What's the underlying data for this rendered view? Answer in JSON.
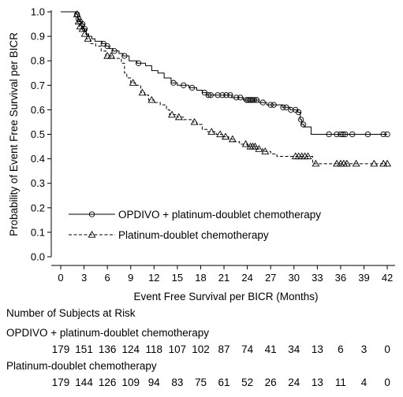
{
  "chart_data": {
    "type": "line",
    "xlabel": "Event Free Survival per BICR (Months)",
    "ylabel": "Probability of Event Free Survival per BICR",
    "xlim": [
      0,
      42.5
    ],
    "ylim": [
      0,
      1.0
    ],
    "x_ticks": [
      0,
      3,
      6,
      9,
      12,
      15,
      18,
      21,
      24,
      27,
      30,
      33,
      36,
      39,
      42
    ],
    "y_ticks": [
      "0.0",
      "0.1",
      "0.2",
      "0.3",
      "0.4",
      "0.5",
      "0.6",
      "0.7",
      "0.8",
      "0.9",
      "1.0"
    ],
    "grid": false,
    "legend_position": "bottom-left",
    "series": [
      {
        "name": "OPDIVO + platinum-doublet chemotherapy",
        "line_style": "solid",
        "marker": "circle",
        "points": [
          [
            0,
            1.0
          ],
          [
            2.0,
            0.99
          ],
          [
            2.2,
            0.97
          ],
          [
            2.4,
            0.96
          ],
          [
            2.7,
            0.95
          ],
          [
            3.0,
            0.93
          ],
          [
            3.3,
            0.91
          ],
          [
            3.6,
            0.9
          ],
          [
            4.0,
            0.89
          ],
          [
            4.4,
            0.88
          ],
          [
            5.3,
            0.87
          ],
          [
            5.8,
            0.86
          ],
          [
            6.2,
            0.85
          ],
          [
            6.7,
            0.84
          ],
          [
            7.5,
            0.83
          ],
          [
            8.0,
            0.82
          ],
          [
            8.8,
            0.8
          ],
          [
            9.8,
            0.79
          ],
          [
            10.9,
            0.78
          ],
          [
            11.7,
            0.76
          ],
          [
            12.5,
            0.75
          ],
          [
            13.3,
            0.73
          ],
          [
            14.2,
            0.71
          ],
          [
            15.0,
            0.7
          ],
          [
            16.5,
            0.69
          ],
          [
            17.5,
            0.68
          ],
          [
            18.2,
            0.67
          ],
          [
            18.8,
            0.66
          ],
          [
            20.0,
            0.66
          ],
          [
            22.0,
            0.65
          ],
          [
            23.5,
            0.64
          ],
          [
            25.0,
            0.64
          ],
          [
            25.5,
            0.63
          ],
          [
            26.5,
            0.62
          ],
          [
            28.0,
            0.62
          ],
          [
            28.5,
            0.61
          ],
          [
            29.5,
            0.6
          ],
          [
            30.5,
            0.59
          ],
          [
            30.8,
            0.56
          ],
          [
            31.0,
            0.54
          ],
          [
            31.3,
            0.53
          ],
          [
            32.2,
            0.5
          ],
          [
            42,
            0.5
          ]
        ],
        "censored_x": [
          2.1,
          2.3,
          2.5,
          2.8,
          3.1,
          5.5,
          6.0,
          6.9,
          8.2,
          10.0,
          14.5,
          15.8,
          16.9,
          18.5,
          19.0,
          19.3,
          20.2,
          20.8,
          21.3,
          21.8,
          22.6,
          23.1,
          23.9,
          24.1,
          24.3,
          24.5,
          24.7,
          24.9,
          25.2,
          26.0,
          27.0,
          27.4,
          28.6,
          29.0,
          29.6,
          30.2,
          30.6,
          30.9,
          31.2,
          34.5,
          35.5,
          36.0,
          36.3,
          36.6,
          37.5,
          39.5,
          41.5,
          42.0
        ]
      },
      {
        "name": "Platinum-doublet chemotherapy",
        "line_style": "dashed",
        "marker": "triangle",
        "points": [
          [
            0,
            1.0
          ],
          [
            2.0,
            0.99
          ],
          [
            2.2,
            0.96
          ],
          [
            2.4,
            0.94
          ],
          [
            2.7,
            0.93
          ],
          [
            3.0,
            0.91
          ],
          [
            3.3,
            0.89
          ],
          [
            3.8,
            0.87
          ],
          [
            4.5,
            0.86
          ],
          [
            5.2,
            0.84
          ],
          [
            5.8,
            0.82
          ],
          [
            6.8,
            0.81
          ],
          [
            7.8,
            0.79
          ],
          [
            8.2,
            0.75
          ],
          [
            8.5,
            0.73
          ],
          [
            9.0,
            0.71
          ],
          [
            9.6,
            0.7
          ],
          [
            10.3,
            0.67
          ],
          [
            10.8,
            0.66
          ],
          [
            11.3,
            0.64
          ],
          [
            12.0,
            0.63
          ],
          [
            12.8,
            0.62
          ],
          [
            13.6,
            0.6
          ],
          [
            14.0,
            0.58
          ],
          [
            15.0,
            0.57
          ],
          [
            15.8,
            0.56
          ],
          [
            17.0,
            0.55
          ],
          [
            17.5,
            0.54
          ],
          [
            18.2,
            0.52
          ],
          [
            18.8,
            0.51
          ],
          [
            20.0,
            0.5
          ],
          [
            20.8,
            0.49
          ],
          [
            21.6,
            0.48
          ],
          [
            22.3,
            0.47
          ],
          [
            23.0,
            0.46
          ],
          [
            24.0,
            0.45
          ],
          [
            25.2,
            0.44
          ],
          [
            26.0,
            0.43
          ],
          [
            27.0,
            0.42
          ],
          [
            27.8,
            0.41
          ],
          [
            32.0,
            0.41
          ],
          [
            32.4,
            0.38
          ],
          [
            42,
            0.38
          ]
        ],
        "censored_x": [
          2.1,
          2.3,
          2.5,
          2.8,
          3.1,
          3.5,
          6.0,
          6.5,
          9.3,
          10.5,
          11.7,
          14.3,
          15.2,
          17.2,
          19.4,
          20.5,
          21.2,
          22.1,
          23.8,
          24.4,
          24.7,
          25.0,
          25.5,
          26.3,
          30.2,
          30.6,
          31.0,
          31.4,
          31.8,
          32.8,
          35.5,
          36.0,
          36.4,
          36.8,
          38.0,
          40.3,
          41.5,
          42.0
        ]
      }
    ],
    "risk_table": {
      "title": "Number of Subjects at Risk",
      "rows": [
        {
          "name": "OPDIVO + platinum-doublet chemotherapy",
          "values": [
            "179",
            "151",
            "136",
            "124",
            "118",
            "107",
            "102",
            "87",
            "74",
            "41",
            "34",
            "13",
            "6",
            "3",
            "0"
          ]
        },
        {
          "name": "Platinum-doublet chemotherapy",
          "values": [
            "179",
            "144",
            "126",
            "109",
            "94",
            "83",
            "75",
            "61",
            "52",
            "26",
            "24",
            "13",
            "11",
            "4",
            "0"
          ]
        }
      ]
    }
  }
}
